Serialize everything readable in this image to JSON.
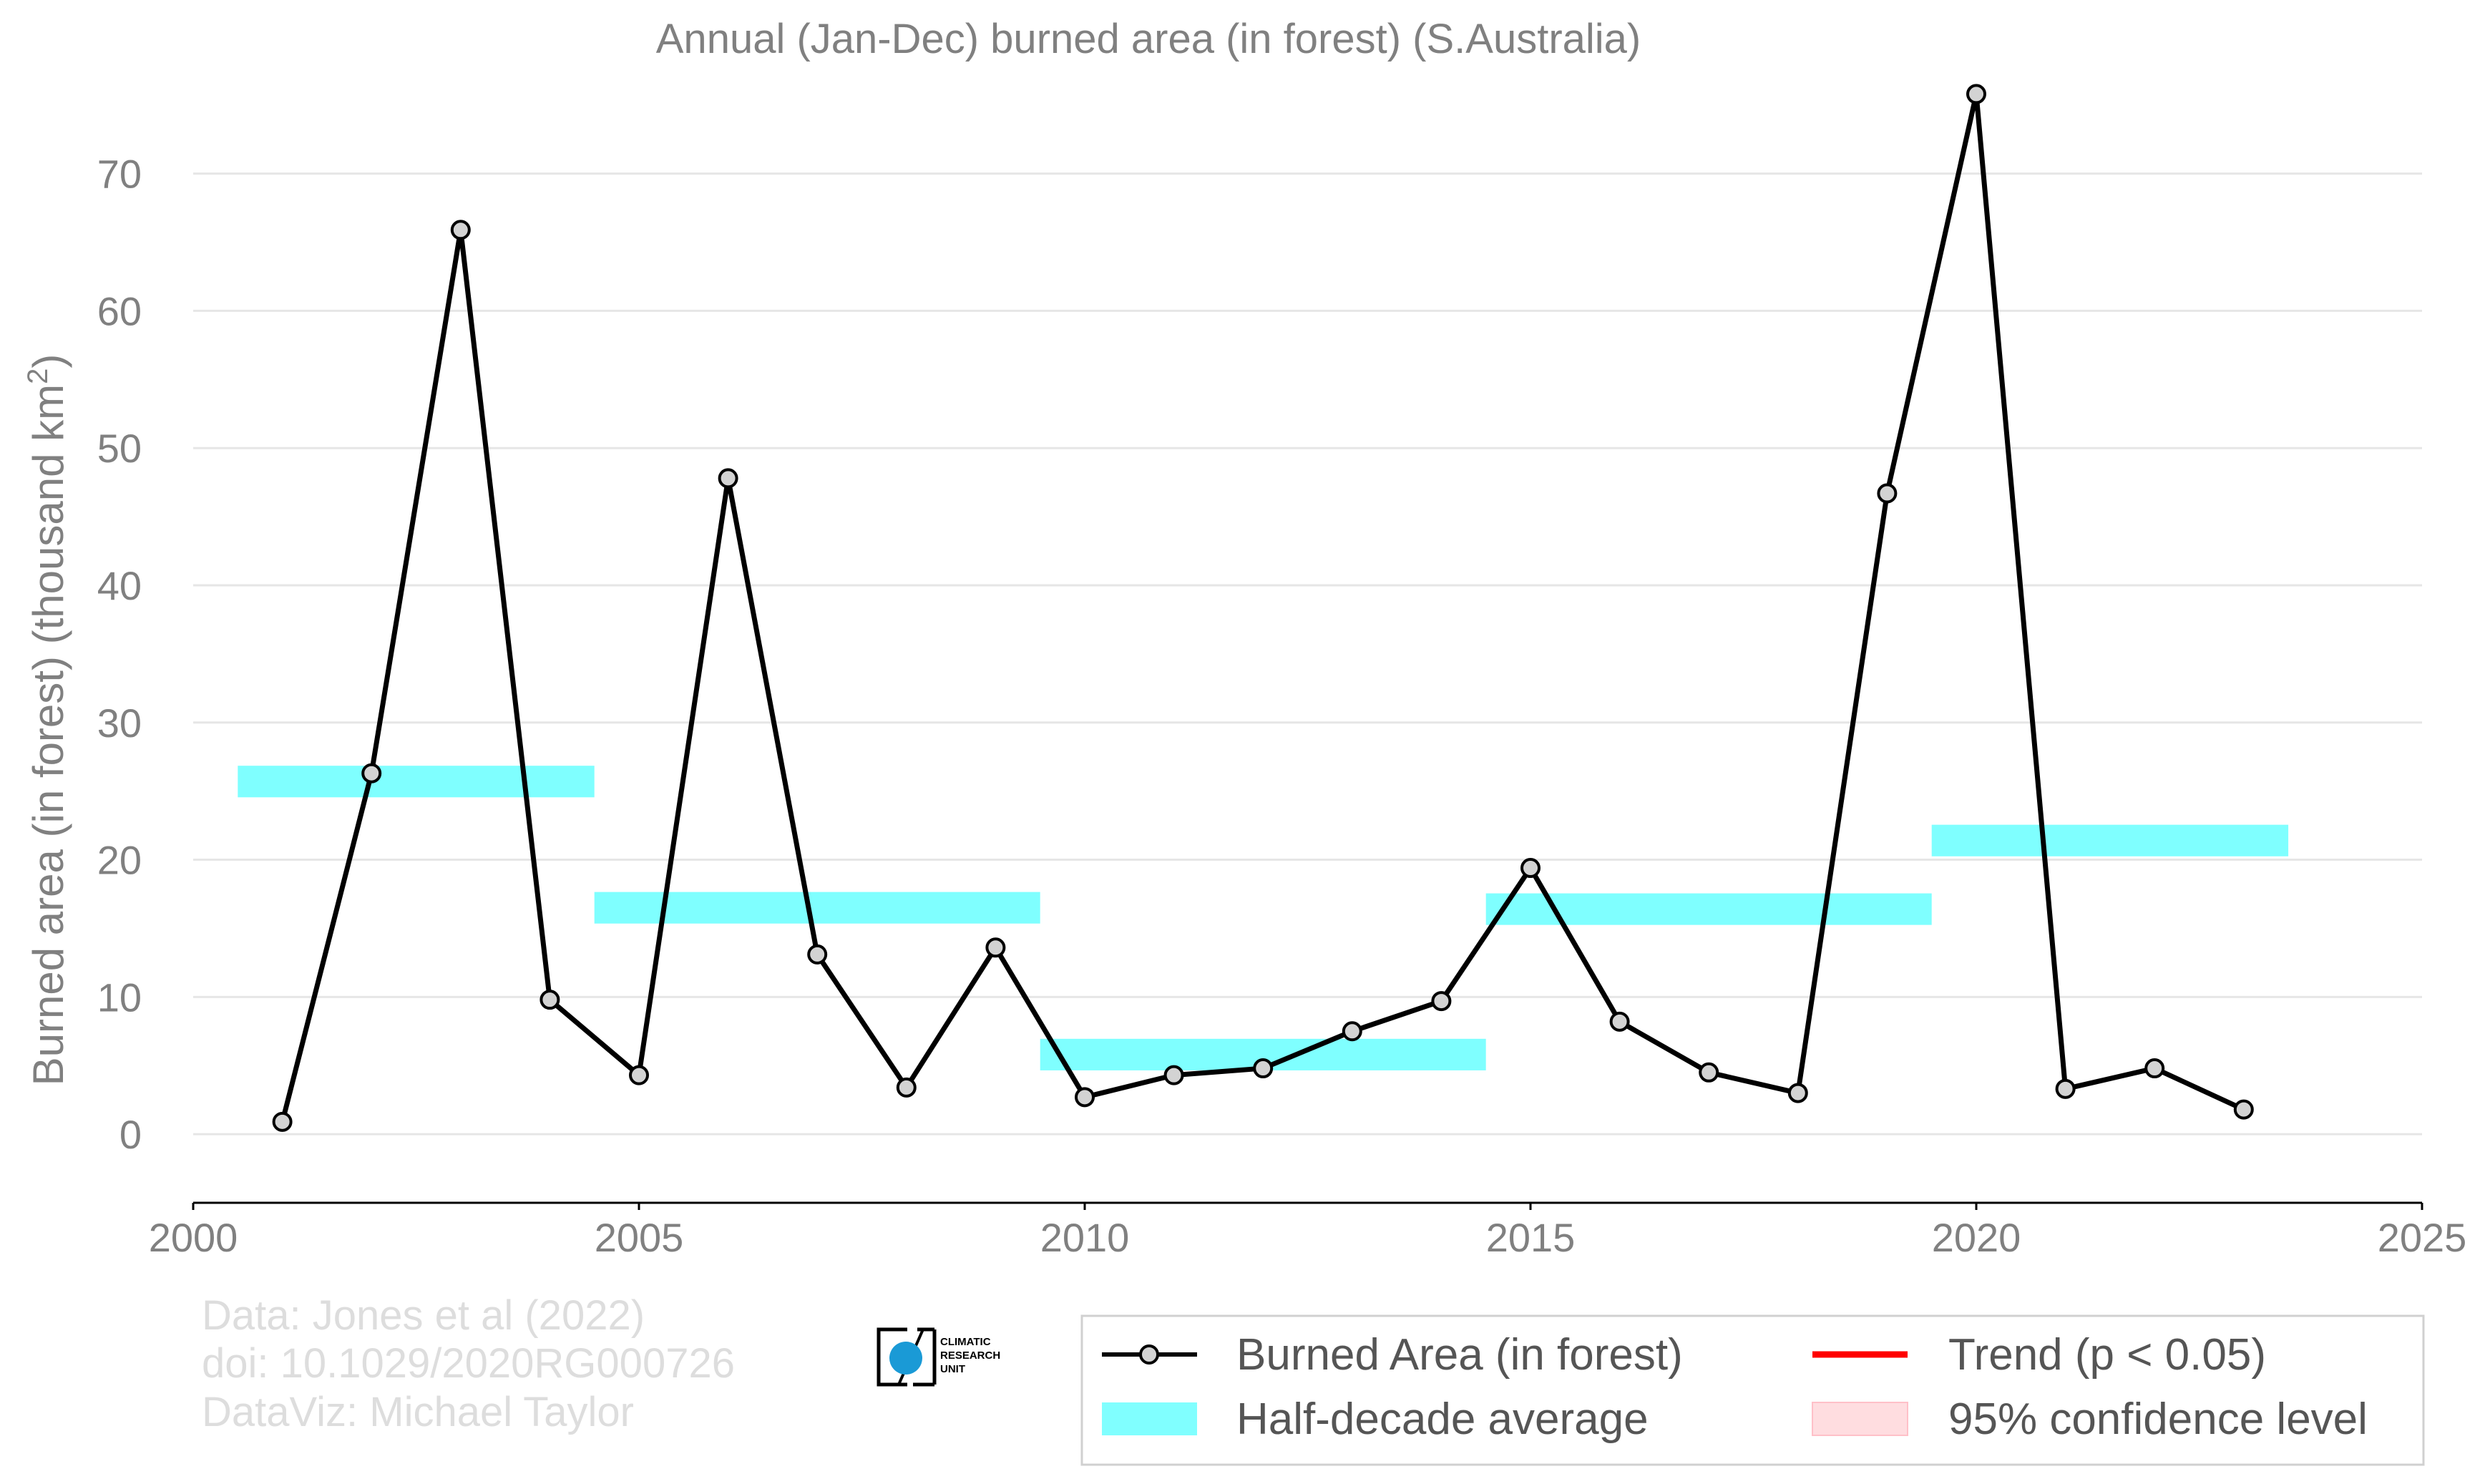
{
  "chart_data": {
    "type": "line",
    "title": "Annual (Jan-Dec) burned area (in forest) (S.Australia)",
    "xlabel": "",
    "ylabel": "Burned area (in forest) (thousand km",
    "ylabel_superscript": "2",
    "ylabel_suffix": ")",
    "xlim": [
      2000,
      2025
    ],
    "ylim": [
      -5,
      76.5
    ],
    "x_ticks": [
      2000,
      2005,
      2010,
      2015,
      2020,
      2025
    ],
    "y_ticks": [
      0,
      10,
      20,
      30,
      40,
      50,
      60,
      70
    ],
    "grid": "horizontal",
    "legend_position": "bottom-right",
    "series": [
      {
        "name": "Burned Area (in forest)",
        "color": "#000000",
        "marker_fill": "#d3d3d3",
        "x": [
          2001,
          2002,
          2003,
          2004,
          2005,
          2006,
          2007,
          2008,
          2009,
          2010,
          2011,
          2012,
          2013,
          2014,
          2015,
          2016,
          2017,
          2018,
          2019,
          2020,
          2021,
          2022,
          2023
        ],
        "y": [
          0.9,
          26.3,
          65.9,
          9.8,
          4.3,
          47.8,
          13.1,
          3.4,
          13.6,
          2.7,
          4.3,
          4.8,
          7.5,
          9.7,
          19.4,
          8.2,
          4.5,
          3.0,
          46.7,
          75.8,
          3.3,
          4.8,
          1.8
        ]
      }
    ],
    "half_decade_average": {
      "name": "Half-decade average",
      "color": "#00ffff",
      "opacity": 0.5,
      "segments": [
        {
          "x0": 2000.5,
          "x1": 2004.5,
          "y": 25.7
        },
        {
          "x0": 2004.5,
          "x1": 2009.5,
          "y": 16.5
        },
        {
          "x0": 2009.5,
          "x1": 2014.5,
          "y": 5.8
        },
        {
          "x0": 2014.5,
          "x1": 2019.5,
          "y": 16.4
        },
        {
          "x0": 2019.5,
          "x1": 2023.5,
          "y": 21.4
        }
      ]
    },
    "legend": {
      "entries": [
        {
          "label": "Burned Area (in forest)",
          "style": "line-marker",
          "color": "#000000"
        },
        {
          "label": "Trend (p < 0.05)",
          "style": "line",
          "color": "#ff0000"
        },
        {
          "label": "Half-decade average",
          "style": "patch",
          "color": "#80ffff"
        },
        {
          "label": "95% confidence level",
          "style": "patch",
          "color": "#ffdde0"
        }
      ]
    },
    "credits": [
      "Data: Jones et al (2022)",
      "doi: 10.1029/2020RG000726",
      "DataViz: Michael Taylor"
    ],
    "logo_text": [
      "CLIMATIC",
      "RESEARCH",
      "UNIT"
    ]
  }
}
